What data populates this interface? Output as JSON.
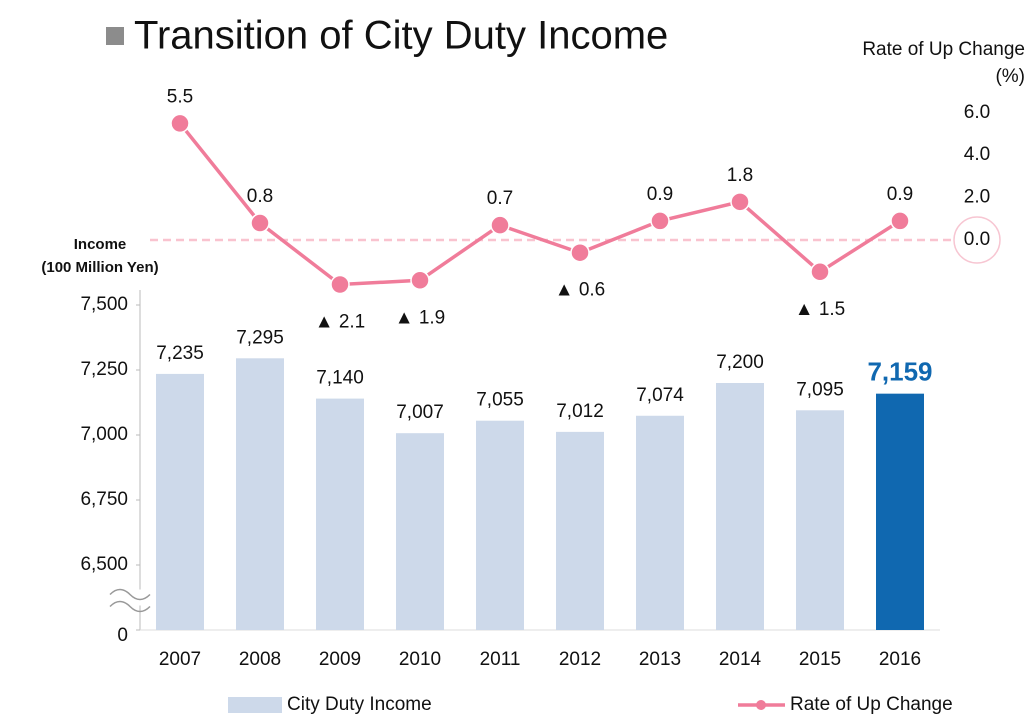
{
  "chart_data": {
    "type": "bar",
    "title": "Transition of City Duty Income",
    "y_label": [
      "Income",
      "(100 Million Yen)"
    ],
    "y2_label": [
      "Rate of Up Change",
      "(%)"
    ],
    "categories": [
      "2007",
      "2008",
      "2009",
      "2010",
      "2011",
      "2012",
      "2013",
      "2014",
      "2015",
      "2016"
    ],
    "axis_break": true,
    "ylim": [
      0,
      7500
    ],
    "yticks": [
      0,
      {
        "value": 6500,
        "label": "6,500"
      },
      {
        "value": 6750,
        "label": "6,750"
      },
      {
        "value": 7000,
        "label": "7,000"
      },
      {
        "value": 7250,
        "label": "7,250"
      },
      {
        "value": 7500,
        "label": "7,500"
      }
    ],
    "y2lim": [
      -3,
      6.5
    ],
    "y2ticks": [
      {
        "value": 6,
        "label": "6.0"
      },
      {
        "value": 4,
        "label": "4.0"
      },
      {
        "value": 2,
        "label": "2.0"
      },
      {
        "value": 0,
        "label": "0.0"
      }
    ],
    "zero_line": true,
    "series": [
      {
        "name": "City Duty Income",
        "color": "#cdd9ea",
        "colors": [
          "#cdd9ea",
          "#cdd9ea",
          "#cdd9ea",
          "#cdd9ea",
          "#cdd9ea",
          "#cdd9ea",
          "#cdd9ea",
          "#cdd9ea",
          "#cdd9ea",
          "#1068b0"
        ],
        "values": [
          7235,
          7295,
          7140,
          7007,
          7055,
          7012,
          7074,
          7200,
          7095,
          7159
        ],
        "value_labels": [
          "7,235",
          "7,295",
          "7,140",
          "7,007",
          "7,055",
          "7,012",
          "7,074",
          "7,200",
          "7,095",
          "7,159"
        ]
      },
      {
        "name": "Rate of Up Change",
        "type": "line",
        "axis": "y2",
        "color": "#f07c9a",
        "values": [
          5.5,
          0.8,
          -2.1,
          -1.9,
          0.7,
          -0.6,
          0.9,
          1.8,
          -1.5,
          0.9
        ],
        "value_labels": [
          "5.5",
          "0.8",
          "▲ 2.1",
          "▲ 1.9",
          "0.7",
          "▲ 0.6",
          "0.9",
          "1.8",
          "▲ 1.5",
          "0.9"
        ]
      }
    ]
  }
}
